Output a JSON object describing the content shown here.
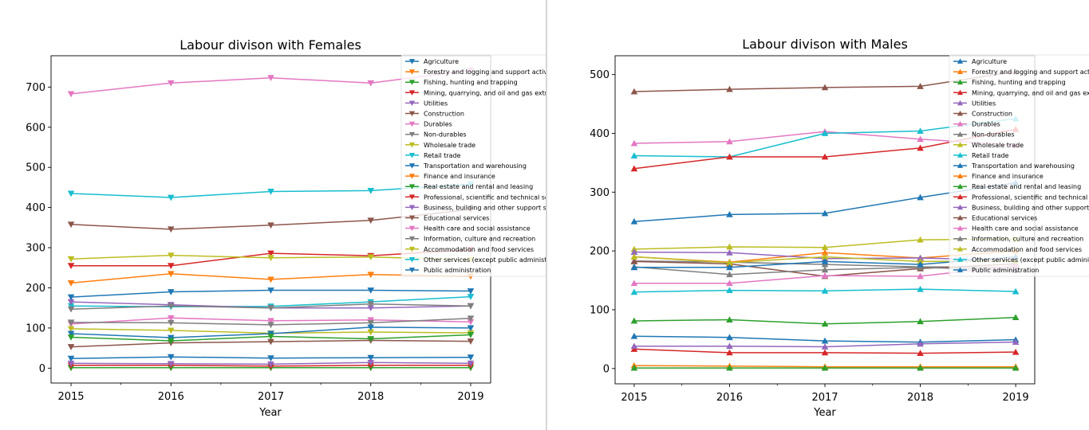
{
  "colors": [
    "#1f77b4",
    "#ff7f0e",
    "#2ca02c",
    "#d62728",
    "#9467bd",
    "#8c564b",
    "#e377c2",
    "#7f7f7f",
    "#bcbd22",
    "#17becf"
  ],
  "chart_data": [
    {
      "type": "line",
      "title": "Labour divison with Females",
      "xlabel": "Year",
      "ylabel": "",
      "marker": "triangle-down",
      "legend_placement": "top-right",
      "grid": false,
      "x": [
        2015,
        2016,
        2017,
        2018,
        2019
      ],
      "xlim": [
        2014.8,
        2019.2
      ],
      "ylim": [
        -37,
        778
      ],
      "yticks": [
        0,
        100,
        200,
        300,
        400,
        500,
        600,
        700
      ],
      "series": [
        {
          "name": "Agriculture",
          "values": [
            24,
            28,
            25,
            26,
            27
          ]
        },
        {
          "name": "Forestry and logging and support activities for forestry",
          "values": [
            1,
            1,
            1,
            1,
            1
          ]
        },
        {
          "name": "Fishing, hunting and trapping",
          "values": [
            1,
            1,
            1,
            1,
            1
          ]
        },
        {
          "name": "Mining, quarrying, and oil and gas extraction",
          "values": [
            7,
            7,
            5,
            7,
            7
          ]
        },
        {
          "name": "Utilities",
          "values": [
            12,
            11,
            10,
            14,
            12
          ]
        },
        {
          "name": "Construction",
          "values": [
            53,
            63,
            66,
            69,
            67
          ]
        },
        {
          "name": "Durables",
          "values": [
            110,
            125,
            118,
            120,
            115
          ]
        },
        {
          "name": "Non-durables",
          "values": [
            114,
            113,
            108,
            113,
            124
          ]
        },
        {
          "name": "Wholesale trade",
          "values": [
            98,
            94,
            87,
            90,
            88
          ]
        },
        {
          "name": "Retail trade",
          "values": [
            155,
            153,
            154,
            165,
            178
          ]
        },
        {
          "name": "Transportation and warehousing",
          "values": [
            86,
            76,
            86,
            102,
            100
          ]
        },
        {
          "name": "Finance and insurance",
          "values": [
            212,
            235,
            221,
            233,
            229
          ]
        },
        {
          "name": "Real estate and rental and leasing",
          "values": [
            77,
            68,
            79,
            73,
            83
          ]
        },
        {
          "name": "Professional, scientific and technical services",
          "values": [
            255,
            255,
            286,
            280,
            295
          ]
        },
        {
          "name": "Business, building and other support services",
          "values": [
            165,
            158,
            150,
            150,
            155
          ]
        },
        {
          "name": "Educational services",
          "values": [
            358,
            346,
            356,
            368,
            395
          ]
        },
        {
          "name": "Health care and social assistance",
          "values": [
            683,
            710,
            723,
            710,
            742
          ]
        },
        {
          "name": "Information, culture and recreation",
          "values": [
            147,
            155,
            150,
            160,
            155
          ]
        },
        {
          "name": "Accommodation and food services",
          "values": [
            272,
            281,
            275,
            277,
            270
          ]
        },
        {
          "name": "Other services (except public administration)",
          "values": [
            435,
            425,
            440,
            442,
            458
          ]
        },
        {
          "name": "Public administration",
          "values": [
            177,
            190,
            194,
            194,
            192
          ]
        }
      ]
    },
    {
      "type": "line",
      "title": "Labour divison with Males",
      "xlabel": "Year",
      "ylabel": "",
      "marker": "triangle-up",
      "legend_placement": "top-right",
      "grid": false,
      "x": [
        2015,
        2016,
        2017,
        2018,
        2019
      ],
      "xlim": [
        2014.8,
        2019.2
      ],
      "ylim": [
        -26,
        532
      ],
      "yticks": [
        0,
        100,
        200,
        300,
        400,
        500
      ],
      "series": [
        {
          "name": "Agriculture",
          "values": [
            55,
            53,
            47,
            45,
            49
          ]
        },
        {
          "name": "Forestry and logging and support activities for forestry",
          "values": [
            5,
            4,
            3,
            3,
            3
          ]
        },
        {
          "name": "Fishing, hunting and trapping",
          "values": [
            1,
            1,
            1,
            1,
            1
          ]
        },
        {
          "name": "Mining, quarrying, and oil and gas extraction",
          "values": [
            33,
            27,
            27,
            26,
            28
          ]
        },
        {
          "name": "Utilities",
          "values": [
            38,
            38,
            37,
            42,
            45
          ]
        },
        {
          "name": "Construction",
          "values": [
            471,
            475,
            478,
            480,
            505
          ]
        },
        {
          "name": "Durables",
          "values": [
            383,
            386,
            403,
            390,
            380
          ]
        },
        {
          "name": "Non-durables",
          "values": [
            183,
            181,
            177,
            173,
            172
          ]
        },
        {
          "name": "Wholesale trade",
          "values": [
            203,
            207,
            206,
            219,
            220
          ]
        },
        {
          "name": "Retail trade",
          "values": [
            362,
            360,
            400,
            404,
            425
          ]
        },
        {
          "name": "Transportation and warehousing",
          "values": [
            250,
            262,
            264,
            291,
            316
          ]
        },
        {
          "name": "Finance and insurance",
          "values": [
            190,
            181,
            197,
            188,
            200
          ]
        },
        {
          "name": "Real estate and rental and leasing",
          "values": [
            81,
            83,
            76,
            80,
            87
          ]
        },
        {
          "name": "Professional, scientific and technical services",
          "values": [
            340,
            360,
            360,
            375,
            407
          ]
        },
        {
          "name": "Business, building and other support services",
          "values": [
            198,
            197,
            187,
            188,
            184
          ]
        },
        {
          "name": "Educational services",
          "values": [
            182,
            178,
            157,
            170,
            178
          ]
        },
        {
          "name": "Health care and social assistance",
          "values": [
            145,
            145,
            158,
            157,
            175
          ]
        },
        {
          "name": "Information, culture and recreation",
          "values": [
            173,
            160,
            168,
            172,
            167
          ]
        },
        {
          "name": "Accommodation and food services",
          "values": [
            190,
            180,
            190,
            182,
            183
          ]
        },
        {
          "name": "Other services (except public administration)",
          "values": [
            130,
            133,
            132,
            135,
            131
          ]
        },
        {
          "name": "Public administration",
          "values": [
            172,
            172,
            182,
            177,
            190
          ]
        }
      ]
    }
  ]
}
